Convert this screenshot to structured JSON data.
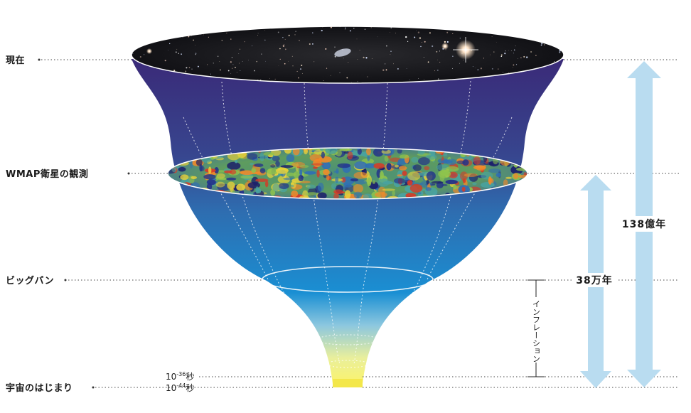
{
  "labels": {
    "now": "現在",
    "wmap": "WMAP衛星の観測",
    "bigbang": "ビッグバン",
    "beginning": "宇宙のはじまり"
  },
  "times": {
    "t1_base": "10",
    "t1_exp": "-36",
    "t1_unit": "秒",
    "t2_base": "10",
    "t2_exp": "-44",
    "t2_unit": "秒"
  },
  "spans": {
    "inflation": "インフレーション",
    "years_380k": "38万年",
    "years_13_8b": "138億年"
  },
  "colors": {
    "funnel_top": "#3b2f7d",
    "funnel_mid": "#2c6fb0",
    "funnel_bigbang": "#1a8fd2",
    "funnel_bottom": "#f6f27a",
    "arrow": "#b9dcf0",
    "dotted": "#333333"
  }
}
